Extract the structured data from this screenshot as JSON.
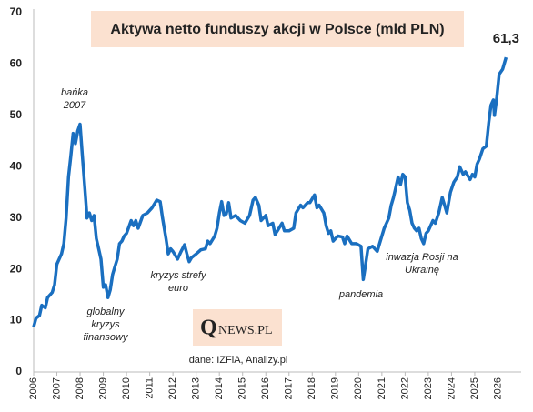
{
  "chart_data": {
    "type": "line",
    "title": "Aktywa netto funduszy akcji w Polsce (mld PLN)",
    "x": [
      2006.0,
      2006.1,
      2006.25,
      2006.35,
      2006.5,
      2006.6,
      2006.8,
      2006.9,
      2007.0,
      2007.2,
      2007.3,
      2007.4,
      2007.5,
      2007.6,
      2007.7,
      2007.8,
      2007.9,
      2008.0,
      2008.1,
      2008.2,
      2008.3,
      2008.4,
      2008.5,
      2008.6,
      2008.7,
      2008.8,
      2008.9,
      2009.0,
      2009.1,
      2009.2,
      2009.3,
      2009.4,
      2009.5,
      2009.6,
      2009.7,
      2009.8,
      2009.9,
      2010.0,
      2010.2,
      2010.3,
      2010.4,
      2010.5,
      2010.7,
      2010.9,
      2011.1,
      2011.3,
      2011.45,
      2011.55,
      2011.7,
      2011.8,
      2011.9,
      2012.0,
      2012.2,
      2012.35,
      2012.5,
      2012.6,
      2012.7,
      2012.8,
      2013.0,
      2013.2,
      2013.4,
      2013.5,
      2013.6,
      2013.8,
      2013.9,
      2014.0,
      2014.1,
      2014.2,
      2014.3,
      2014.4,
      2014.5,
      2014.7,
      2014.9,
      2015.1,
      2015.3,
      2015.45,
      2015.55,
      2015.7,
      2015.8,
      2016.0,
      2016.1,
      2016.3,
      2016.4,
      2016.5,
      2016.7,
      2016.8,
      2017.0,
      2017.2,
      2017.3,
      2017.5,
      2017.6,
      2017.8,
      2017.9,
      2018.1,
      2018.2,
      2018.3,
      2018.5,
      2018.6,
      2018.7,
      2018.8,
      2018.9,
      2019.1,
      2019.3,
      2019.4,
      2019.5,
      2019.7,
      2019.9,
      2020.1,
      2020.2,
      2020.3,
      2020.4,
      2020.6,
      2020.8,
      2020.9,
      2021.1,
      2021.3,
      2021.4,
      2021.5,
      2021.6,
      2021.7,
      2021.8,
      2021.9,
      2022.0,
      2022.1,
      2022.2,
      2022.3,
      2022.4,
      2022.5,
      2022.6,
      2022.7,
      2022.8,
      2022.9,
      2023.0,
      2023.2,
      2023.3,
      2023.45,
      2023.6,
      2023.7,
      2023.8,
      2023.95,
      2024.1,
      2024.25,
      2024.35,
      2024.5,
      2024.6,
      2024.8,
      2024.9,
      2025.0,
      2025.1,
      2025.2,
      2025.35,
      2025.5,
      2025.6,
      2025.7,
      2025.8,
      2025.85,
      2025.95,
      2026.05,
      2026.2,
      2026.35
    ],
    "series": [
      {
        "color": "#1a6fc0",
        "values": [
          8.8,
          10.5,
          11,
          13,
          12.5,
          14.5,
          15.5,
          17,
          21,
          23,
          25,
          30,
          38,
          42,
          46.5,
          44.5,
          47,
          48.3,
          42,
          36,
          30,
          31,
          29.5,
          30.5,
          26,
          24,
          22,
          16.5,
          17,
          14.5,
          16,
          19,
          20.5,
          22,
          25,
          25.5,
          26.5,
          27,
          29.5,
          28.5,
          29.5,
          28,
          30.5,
          31,
          32,
          33.5,
          33.2,
          30,
          26,
          23,
          24,
          23.5,
          22,
          23.5,
          24.8,
          23,
          21.5,
          22.3,
          23,
          23.8,
          24,
          25.5,
          25,
          26.5,
          28,
          31,
          33.2,
          30.5,
          30.8,
          33,
          30,
          30.5,
          29.5,
          29,
          30.5,
          33.5,
          34,
          32.5,
          29.5,
          30.5,
          28.5,
          29,
          26.8,
          27.5,
          29,
          27.5,
          27.5,
          28,
          31,
          32.5,
          32,
          33,
          33,
          34.5,
          32,
          32.5,
          31,
          28.5,
          27,
          27.5,
          25.5,
          26.5,
          26.3,
          25,
          26.5,
          25,
          25,
          24.5,
          18,
          21,
          24,
          24.5,
          23.5,
          25,
          28,
          30,
          32.5,
          34,
          36,
          38,
          36.5,
          38.5,
          38,
          33,
          31.5,
          29,
          28,
          27.5,
          28,
          26,
          25,
          27,
          27.5,
          29.5,
          29,
          31,
          34,
          32.5,
          31,
          35,
          37,
          38,
          40,
          38.5,
          39,
          37.5,
          38.5,
          38,
          40.5,
          41.5,
          43.5,
          44,
          48.5,
          52,
          53,
          50,
          53.5,
          58,
          59,
          61.3
        ],
        "value_labels": [
          null,
          null,
          null,
          null,
          null,
          null,
          null,
          null,
          null,
          null,
          null,
          null,
          null,
          null,
          null,
          null,
          null,
          null,
          null,
          null,
          null,
          null,
          null,
          null,
          null,
          null,
          null,
          null,
          null,
          null,
          null,
          null,
          null,
          null,
          null,
          null,
          null,
          null,
          null,
          null,
          null,
          null,
          null,
          null,
          null,
          null,
          null,
          null,
          null,
          null,
          null,
          null,
          null,
          null,
          null,
          null,
          null,
          null,
          null,
          null,
          null,
          null,
          null,
          null,
          null,
          null,
          null,
          null,
          null,
          null,
          null,
          null,
          null,
          null,
          null,
          null,
          null,
          null,
          null,
          null,
          null,
          null,
          null,
          null,
          null,
          null,
          null,
          null,
          null,
          null,
          null,
          null,
          null,
          null,
          null,
          null,
          null,
          null,
          null,
          null,
          null,
          null,
          null,
          null,
          null,
          null,
          null,
          null,
          null,
          null,
          null,
          null,
          null,
          null,
          null,
          null,
          null,
          null,
          null,
          null,
          null,
          null,
          null,
          null,
          null,
          null,
          null,
          null,
          null,
          null,
          null,
          null,
          null,
          null,
          null,
          null,
          null,
          null,
          null,
          null,
          null,
          null,
          null,
          null,
          null,
          null,
          null,
          null,
          null,
          null,
          null,
          null,
          null,
          null,
          null,
          null,
          null,
          null,
          null,
          "61,3"
        ]
      }
    ],
    "xlim": [
      2006,
      2027
    ],
    "xticks": [
      2006,
      2007,
      2008,
      2009,
      2010,
      2011,
      2012,
      2013,
      2014,
      2015,
      2016,
      2017,
      2018,
      2019,
      2020,
      2021,
      2022,
      2023,
      2024,
      2025,
      2026
    ],
    "ylim": [
      0,
      70
    ],
    "yticks": [
      0,
      10,
      20,
      30,
      40,
      50,
      60,
      70
    ],
    "grid": false,
    "annotations": [
      {
        "text": [
          "bańka",
          "2007"
        ]
      },
      {
        "text": [
          "globalny",
          "kryzys",
          "finansowy"
        ]
      },
      {
        "text": [
          "kryzys strefy",
          "euro"
        ]
      },
      {
        "text": [
          "pandemia"
        ]
      },
      {
        "text": [
          "inwazja Rosji na",
          "Ukrainę"
        ]
      }
    ],
    "logo": {
      "initial": "Q",
      "rest": "NEWS.PL"
    },
    "source": "dane: IZFiA, Analizy.pl"
  }
}
